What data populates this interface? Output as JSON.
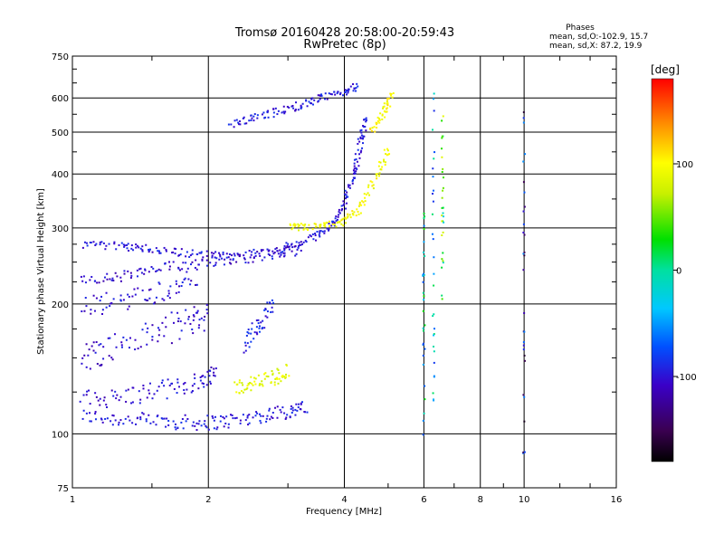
{
  "chart_data": {
    "type": "scatter",
    "title": "Tromsø 20160428 20:58:00-20:59:43",
    "subtitle": "RwPretec (8p)",
    "xlabel": "Frequency [MHz]",
    "ylabel": "Stationary phase Virtual Height [km]",
    "x_scale": "log",
    "y_scale": "log",
    "xlim": [
      1,
      16
    ],
    "ylim": [
      75,
      750
    ],
    "x_ticks": [
      1,
      2,
      4,
      6,
      8,
      10,
      16
    ],
    "x_tick_labels": [
      "1",
      "2",
      "4",
      "6",
      "8",
      "10",
      "16"
    ],
    "y_ticks": [
      75,
      100,
      200,
      300,
      400,
      500,
      600,
      750
    ],
    "y_tick_labels": [
      "75",
      "100",
      "200",
      "300",
      "400",
      "500",
      "600",
      "750"
    ],
    "grid": true,
    "colorbar": {
      "label": "[deg]",
      "range": [
        -180,
        180
      ],
      "ticks": [
        -100,
        0,
        100
      ],
      "tick_labels": [
        "-100",
        "0",
        "100"
      ]
    },
    "phases_box": {
      "title": "Phases",
      "line_o": "mean, sd,O:-102.9, 15.7",
      "line_x": "mean, sd,X: 87.2, 19.9"
    },
    "traces": [
      {
        "x": [
          1.05,
          1.3,
          1.6,
          1.9,
          2.2,
          2.6,
          3.0,
          3.3
        ],
        "y": [
          110,
          108,
          107,
          106,
          107,
          110,
          113,
          115
        ],
        "phase": -100,
        "spread": 0.04
      },
      {
        "x": [
          1.05,
          1.3,
          1.6,
          1.9,
          2.1
        ],
        "y": [
          120,
          122,
          127,
          132,
          140
        ],
        "phase": -105,
        "spread": 0.05
      },
      {
        "x": [
          1.05,
          1.2,
          1.5,
          1.8,
          2.0
        ],
        "y": [
          150,
          158,
          170,
          182,
          190
        ],
        "phase": -105,
        "spread": 0.08
      },
      {
        "x": [
          1.05,
          1.3,
          1.6,
          2.0,
          2.4,
          2.9,
          3.2
        ],
        "y": [
          225,
          232,
          242,
          252,
          256,
          263,
          268
        ],
        "phase": -105,
        "spread": 0.03
      },
      {
        "x": [
          1.05,
          1.3,
          1.5,
          1.8,
          2.2,
          2.8,
          3.3,
          3.7,
          4.0,
          4.2,
          4.35,
          4.45
        ],
        "y": [
          275,
          272,
          268,
          262,
          258,
          265,
          280,
          300,
          340,
          400,
          470,
          540
        ],
        "phase": -100,
        "spread": 0.02
      },
      {
        "x": [
          2.25,
          2.6,
          3.0,
          3.4,
          3.9,
          4.3
        ],
        "y": [
          520,
          545,
          565,
          590,
          615,
          640
        ],
        "phase": -100,
        "spread": 0.02
      },
      {
        "x": [
          3.0,
          3.4,
          3.9,
          4.3,
          4.7,
          5.0
        ],
        "y": [
          300,
          302,
          306,
          330,
          390,
          460
        ],
        "phase": 95,
        "spread": 0.02
      },
      {
        "x": [
          4.6,
          4.9,
          5.1
        ],
        "y": [
          500,
          560,
          610
        ],
        "phase": 100,
        "spread": 0.02
      },
      {
        "x": [
          2.3,
          2.5,
          2.8,
          3.0
        ],
        "y": [
          128,
          131,
          135,
          140
        ],
        "phase": 85,
        "spread": 0.04
      },
      {
        "x": [
          2.4,
          2.6,
          2.8
        ],
        "y": [
          160,
          180,
          200
        ],
        "phase": -95,
        "spread": 0.05
      },
      {
        "x": [
          1.05,
          1.3,
          1.6,
          1.9
        ],
        "y": [
          195,
          205,
          215,
          228
        ],
        "phase": -105,
        "spread": 0.06
      }
    ],
    "vertical_streaks": [
      {
        "x": 6.0,
        "y_from": 90,
        "y_to": 330,
        "phase": -20
      },
      {
        "x": 6.3,
        "y_from": 110,
        "y_to": 620,
        "phase": -40
      },
      {
        "x": 6.6,
        "y_from": 200,
        "y_to": 560,
        "phase": 30
      },
      {
        "x": 10.0,
        "y_from": 82,
        "y_to": 615,
        "phase": -110
      }
    ]
  }
}
